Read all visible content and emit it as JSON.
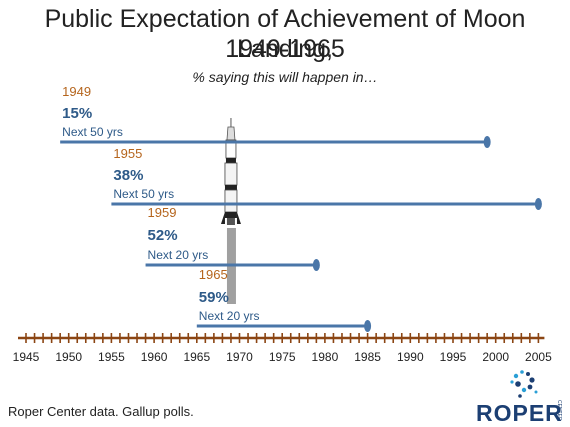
{
  "title_line1": "Public Expectation of Achievement of Moon Landing,",
  "title_line2": "1949-1965",
  "subtitle": "% saying this will happen in…",
  "footer": "Roper Center data. Gallup polls.",
  "logo": {
    "text": "ROPER",
    "side_text": "CENTER"
  },
  "colors": {
    "year_label": "#b5651d",
    "percent_label": "#2e5a88",
    "horizon_label": "#2e5a88",
    "line": "#4a76a8",
    "timeline": "#8b4513",
    "landing_bar": "#a0a0a0"
  },
  "chart_data": {
    "type": "timeline",
    "x_axis": {
      "ticks": [
        1945,
        1950,
        1955,
        1960,
        1965,
        1970,
        1975,
        1980,
        1985,
        1990,
        1995,
        2000,
        2005
      ],
      "range": [
        1945,
        2005
      ]
    },
    "milestone": {
      "year": 1969,
      "label": ""
    },
    "polls": [
      {
        "year": "1949",
        "percent": "15%",
        "horizon": "Next 50 yrs",
        "start": 1949,
        "end": 1999
      },
      {
        "year": "1955",
        "percent": "38%",
        "horizon": "Next 50 yrs",
        "start": 1955,
        "end": 2005
      },
      {
        "year": "1959",
        "percent": "52%",
        "horizon": "Next 20 yrs",
        "start": 1959,
        "end": 1979
      },
      {
        "year": "1965",
        "percent": "59%",
        "horizon": "Next 20 yrs",
        "start": 1965,
        "end": 1985
      }
    ]
  }
}
